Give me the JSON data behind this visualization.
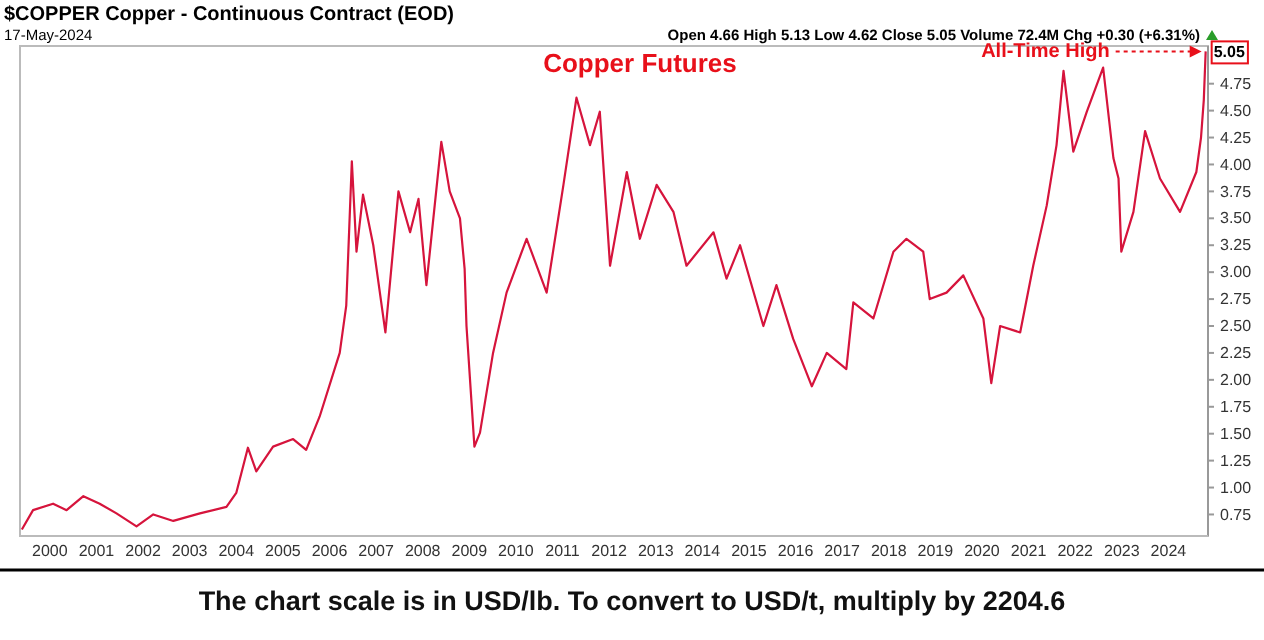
{
  "chart_data": {
    "type": "line",
    "title": "Copper Futures",
    "annotations": [
      "$COPPER Copper - Continuous Contract (EOD)",
      "17-May-2024",
      "Open 4.66 High 5.13 Low 4.62 Close 5.05 Volume 72.4M Chg +0.30 (+6.31%)",
      {
        "text": "All-Time High",
        "x": 2024.8,
        "y": 5.05
      },
      {
        "text": "5.05",
        "x": 2024.8,
        "y": 5.05
      },
      "The chart scale is in USD/lb. To convert to USD/t, multiply by 2204.6"
    ],
    "xlim": [
      1999.36,
      2024.85
    ],
    "xticks": [
      2000,
      2001,
      2002,
      2003,
      2004,
      2005,
      2006,
      2007,
      2008,
      2009,
      2010,
      2011,
      2012,
      2013,
      2014,
      2015,
      2016,
      2017,
      2018,
      2019,
      2020,
      2021,
      2022,
      2023,
      2024
    ],
    "ylim": [
      0.55,
      5.1
    ],
    "yticks": [
      0.75,
      {
        "value": 1,
        "label": "1.00"
      },
      1.25,
      {
        "value": 1.5,
        "label": "1.50"
      },
      1.75,
      {
        "value": 2,
        "label": "2.00"
      },
      2.25,
      {
        "value": 2.5,
        "label": "2.50"
      },
      2.75,
      {
        "value": 3,
        "label": "3.00"
      },
      3.25,
      {
        "value": 3.5,
        "label": "3.50"
      },
      3.75,
      {
        "value": 4,
        "label": "4.00"
      },
      4.25,
      {
        "value": 4.5,
        "label": "4.50"
      },
      4.75
    ],
    "series": [
      {
        "color": "#d6143c",
        "x": [
          1999.4,
          1999.64,
          2000.07,
          2000.36,
          2000.72,
          2001.07,
          2001.43,
          2001.86,
          2002.22,
          2002.65,
          2003.22,
          2003.79,
          2004.0,
          2004.25,
          2004.43,
          2004.79,
          2005.22,
          2005.5,
          2005.79,
          2006.22,
          2006.36,
          2006.48,
          2006.58,
          2006.72,
          2006.94,
          2007.2,
          2007.48,
          2007.73,
          2007.91,
          2008.08,
          2008.4,
          2008.58,
          2008.8,
          2008.9,
          2008.94,
          2009.11,
          2009.23,
          2009.51,
          2009.8,
          2010.23,
          2010.66,
          2011.02,
          2011.3,
          2011.59,
          2011.8,
          2012.02,
          2012.38,
          2012.66,
          2013.02,
          2013.38,
          2013.66,
          2014.24,
          2014.52,
          2014.81,
          2015.31,
          2015.59,
          2015.95,
          2016.35,
          2016.67,
          2017.09,
          2017.24,
          2017.67,
          2018.1,
          2018.38,
          2018.74,
          2018.88,
          2019.24,
          2019.6,
          2020.03,
          2020.2,
          2020.39,
          2020.82,
          2021.1,
          2021.39,
          2021.6,
          2021.75,
          2021.96,
          2022.25,
          2022.6,
          2022.82,
          2022.93,
          2022.99,
          2023.25,
          2023.5,
          2023.82,
          2024.25,
          2024.6,
          2024.7,
          2024.76,
          2024.8
        ],
        "values": [
          0.61,
          0.79,
          0.85,
          0.79,
          0.92,
          0.85,
          0.76,
          0.64,
          0.75,
          0.69,
          0.76,
          0.82,
          0.95,
          1.37,
          1.15,
          1.38,
          1.45,
          1.35,
          1.66,
          2.25,
          2.69,
          4.03,
          3.19,
          3.72,
          3.25,
          2.44,
          3.75,
          3.37,
          3.68,
          2.88,
          4.21,
          3.75,
          3.5,
          3.03,
          2.5,
          1.38,
          1.51,
          2.25,
          2.81,
          3.31,
          2.81,
          3.81,
          4.62,
          4.18,
          4.49,
          3.06,
          3.93,
          3.31,
          3.81,
          3.56,
          3.06,
          3.37,
          2.94,
          3.25,
          2.5,
          2.88,
          2.38,
          1.94,
          2.25,
          2.1,
          2.72,
          2.57,
          3.19,
          3.31,
          3.19,
          2.75,
          2.81,
          2.97,
          2.57,
          1.97,
          2.5,
          2.44,
          3.06,
          3.62,
          4.18,
          4.87,
          4.12,
          4.49,
          4.9,
          4.06,
          3.87,
          3.19,
          3.56,
          4.31,
          3.87,
          3.56,
          3.93,
          4.25,
          4.6,
          5.05
        ]
      }
    ]
  }
}
